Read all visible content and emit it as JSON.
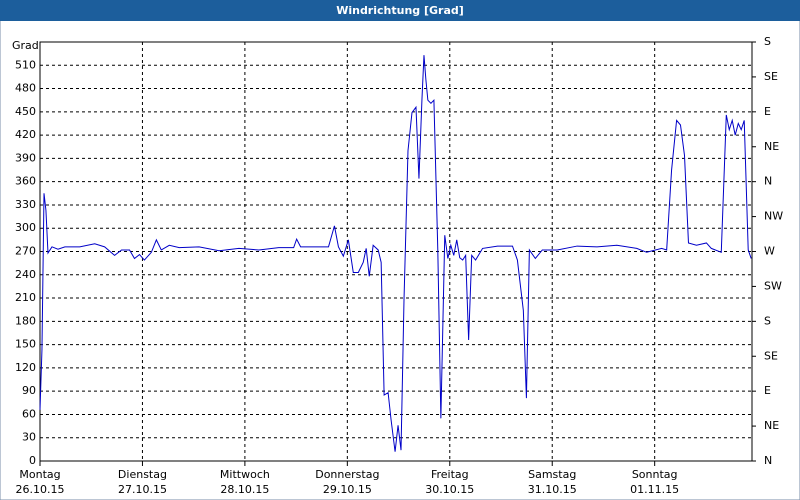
{
  "chart_data": {
    "type": "line",
    "title": "Windrichtung [Grad]",
    "y_label": "Grad",
    "xlim": [
      0,
      6.95
    ],
    "xticks": [
      {
        "value": 0,
        "label": [
          "Montag",
          "26.10.15"
        ]
      },
      {
        "value": 1,
        "label": [
          "Dienstag",
          "27.10.15"
        ]
      },
      {
        "value": 2,
        "label": [
          "Mittwoch",
          "28.10.15"
        ]
      },
      {
        "value": 3,
        "label": [
          "Donnerstag",
          "29.10.15"
        ]
      },
      {
        "value": 4,
        "label": [
          "Freitag",
          "30.10.15"
        ]
      },
      {
        "value": 5,
        "label": [
          "Samstag",
          "31.10.15"
        ]
      },
      {
        "value": 6,
        "label": [
          "Sonntag",
          "01.11.15"
        ]
      }
    ],
    "ylim": [
      0,
      540
    ],
    "yticks": [
      0,
      30,
      60,
      90,
      120,
      150,
      180,
      210,
      240,
      270,
      300,
      330,
      360,
      390,
      420,
      450,
      480,
      510
    ],
    "y2lim": [
      0,
      540
    ],
    "y2ticks": [
      {
        "value": 0,
        "label": "N"
      },
      {
        "value": 45,
        "label": "NE"
      },
      {
        "value": 90,
        "label": "E"
      },
      {
        "value": 135,
        "label": "SE"
      },
      {
        "value": 180,
        "label": "S"
      },
      {
        "value": 225,
        "label": "SW"
      },
      {
        "value": 270,
        "label": "W"
      },
      {
        "value": 315,
        "label": "NW"
      },
      {
        "value": 360,
        "label": "N"
      },
      {
        "value": 405,
        "label": "NE"
      },
      {
        "value": 450,
        "label": "E"
      },
      {
        "value": 495,
        "label": "SE"
      },
      {
        "value": 540,
        "label": "S"
      }
    ],
    "grid": true,
    "series": [
      {
        "color": "#0000c8",
        "x": [
          0,
          0.019,
          0.039,
          0.058,
          0.078,
          0.117,
          0.175,
          0.243,
          0.388,
          0.534,
          0.631,
          0.728,
          0.796,
          0.874,
          0.922,
          0.971,
          1.019,
          1.087,
          1.136,
          1.184,
          1.262,
          1.359,
          1.553,
          1.748,
          1.942,
          2.136,
          2.33,
          2.476,
          2.505,
          2.544,
          2.816,
          2.874,
          2.913,
          2.961,
          3.01,
          3.058,
          3.107,
          3.155,
          3.184,
          3.214,
          3.252,
          3.301,
          3.33,
          3.359,
          3.398,
          3.427,
          3.466,
          3.495,
          3.524,
          3.553,
          3.592,
          3.631,
          3.67,
          3.699,
          3.728,
          3.748,
          3.767,
          3.786,
          3.816,
          3.845,
          3.883,
          3.913,
          3.951,
          3.981,
          4.01,
          4.039,
          4.068,
          4.097,
          4.126,
          4.155,
          4.184,
          4.214,
          4.252,
          4.32,
          4.466,
          4.612,
          4.66,
          4.718,
          4.748,
          4.777,
          4.835,
          4.903,
          5.049,
          5.243,
          5.437,
          5.631,
          5.825,
          5.922,
          6.068,
          6.117,
          6.165,
          6.214,
          6.252,
          6.291,
          6.33,
          6.408,
          6.505,
          6.553,
          6.65,
          6.699,
          6.728,
          6.757,
          6.786,
          6.816,
          6.845,
          6.874,
          6.913,
          6.942
        ],
        "values": [
          66,
          143,
          345,
          323,
          268,
          276,
          273,
          276,
          276,
          280,
          276,
          265,
          272,
          272,
          261,
          266,
          259,
          269,
          285,
          272,
          278,
          275,
          276,
          271,
          274,
          272,
          275,
          275,
          286,
          276,
          276,
          303,
          276,
          264,
          285,
          243,
          243,
          256,
          274,
          238,
          278,
          272,
          256,
          85,
          88,
          53,
          12,
          46,
          14,
          207,
          400,
          449,
          456,
          364,
          465,
          523,
          491,
          465,
          461,
          465,
          272,
          55,
          291,
          261,
          278,
          265,
          285,
          262,
          259,
          265,
          156,
          265,
          259,
          274,
          277,
          277,
          259,
          194,
          81,
          272,
          261,
          272,
          272,
          277,
          276,
          278,
          274,
          269,
          274,
          272,
          375,
          439,
          433,
          394,
          281,
          278,
          281,
          274,
          269,
          446,
          427,
          439,
          420,
          435,
          427,
          439,
          272,
          261
        ]
      }
    ]
  }
}
